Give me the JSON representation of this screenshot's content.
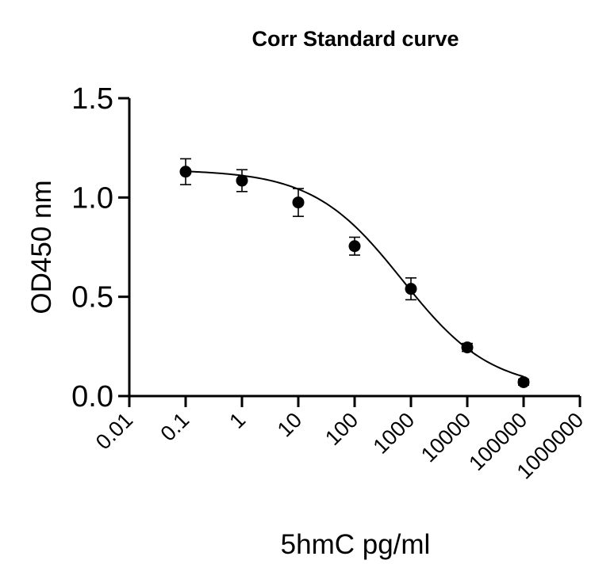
{
  "chart_data": {
    "type": "scatter",
    "title": "Corr Standard curve",
    "xlabel": "5hmC pg/ml",
    "ylabel": "OD450 nm",
    "x_scale": "log",
    "xlim": [
      0.01,
      1000000
    ],
    "ylim": [
      0,
      1.5
    ],
    "x_ticks": [
      "0.01",
      "0.1",
      "1",
      "10",
      "100",
      "1000",
      "10000",
      "100000",
      "1000000"
    ],
    "y_ticks": [
      "0.0",
      "0.5",
      "1.0",
      "1.5"
    ],
    "grid": false,
    "legend": "none",
    "series": [
      {
        "points": [
          {
            "x": 0.1,
            "y": 1.13,
            "err": 0.065
          },
          {
            "x": 1,
            "y": 1.085,
            "err": 0.055
          },
          {
            "x": 10,
            "y": 0.975,
            "err": 0.07
          },
          {
            "x": 100,
            "y": 0.755,
            "err": 0.045
          },
          {
            "x": 1000,
            "y": 0.54,
            "err": 0.055
          },
          {
            "x": 10000,
            "y": 0.245,
            "err": 0.02
          },
          {
            "x": 100000,
            "y": 0.07,
            "err": 0.015
          }
        ],
        "fit": {
          "model": "4PL",
          "top": 1.14,
          "bottom": 0.03,
          "ec50": 700,
          "hill": 0.55
        }
      }
    ],
    "colors": {
      "marker": "#000000",
      "line": "#000000",
      "axis": "#000000"
    }
  }
}
